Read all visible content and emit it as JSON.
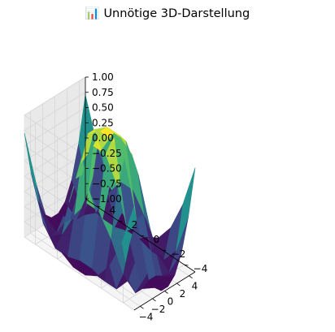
{
  "chart_data": {
    "type": "surface-3d",
    "title": "📊 Unnötige 3D-Darstellung",
    "xlabel": "",
    "ylabel": "",
    "zlabel": "",
    "xlim": [
      -5,
      5
    ],
    "ylim": [
      -5,
      5
    ],
    "zlim": [
      -1,
      1
    ],
    "x_ticks": [
      -4,
      -2,
      0,
      2,
      4
    ],
    "y_ticks": [
      -4,
      -2,
      0,
      2,
      4
    ],
    "z_ticks": [
      -1.0,
      -0.75,
      -0.5,
      -0.25,
      0.0,
      0.25,
      0.5,
      0.75,
      1.0
    ],
    "x_tick_labels": [
      "−4",
      "−2",
      "0",
      "2",
      "4"
    ],
    "y_tick_labels": [
      "−4",
      "−2",
      "0",
      "2",
      "4"
    ],
    "z_tick_labels": [
      "−1.00",
      "−0.75",
      "−0.50",
      "−0.25",
      "0.00",
      "0.25",
      "0.50",
      "0.75",
      "1.00"
    ],
    "grid": true,
    "colormap": "viridis",
    "function": "sin(sqrt(x^2 + y^2))",
    "x": [
      -5.0,
      -3.889,
      -2.778,
      -1.667,
      -0.556,
      0.556,
      1.667,
      2.778,
      3.889,
      5.0
    ],
    "y": [
      -5.0,
      -3.889,
      -2.778,
      -1.667,
      -0.556,
      0.556,
      1.667,
      2.778,
      3.889,
      5.0
    ],
    "z": [
      [
        0.71,
        -0.02,
        -0.54,
        -0.84,
        -0.96,
        -0.96,
        -0.84,
        -0.54,
        -0.02,
        0.71
      ],
      [
        -0.02,
        -0.71,
        -0.99,
        -0.99,
        -0.92,
        -0.92,
        -0.99,
        -0.99,
        -0.71,
        -0.02
      ],
      [
        -0.54,
        -0.99,
        -0.82,
        -0.37,
        -0.05,
        -0.05,
        -0.37,
        -0.82,
        -0.99,
        -0.54
      ],
      [
        -0.84,
        -0.99,
        -0.37,
        0.41,
        0.82,
        0.82,
        0.41,
        -0.37,
        -0.99,
        -0.84
      ],
      [
        -0.96,
        -0.92,
        -0.05,
        0.82,
        0.99,
        0.99,
        0.82,
        -0.05,
        -0.92,
        -0.96
      ],
      [
        -0.96,
        -0.92,
        -0.05,
        0.82,
        0.99,
        0.99,
        0.82,
        -0.05,
        -0.92,
        -0.96
      ],
      [
        -0.84,
        -0.99,
        -0.37,
        0.41,
        0.82,
        0.82,
        0.41,
        -0.37,
        -0.99,
        -0.84
      ],
      [
        -0.54,
        -0.99,
        -0.82,
        -0.37,
        -0.05,
        -0.05,
        -0.37,
        -0.82,
        -0.99,
        -0.54
      ],
      [
        -0.02,
        -0.71,
        -0.99,
        -0.99,
        -0.92,
        -0.92,
        -0.99,
        -0.99,
        -0.71,
        -0.02
      ],
      [
        0.71,
        -0.02,
        -0.54,
        -0.84,
        -0.96,
        -0.96,
        -0.84,
        -0.54,
        -0.02,
        0.71
      ]
    ]
  }
}
